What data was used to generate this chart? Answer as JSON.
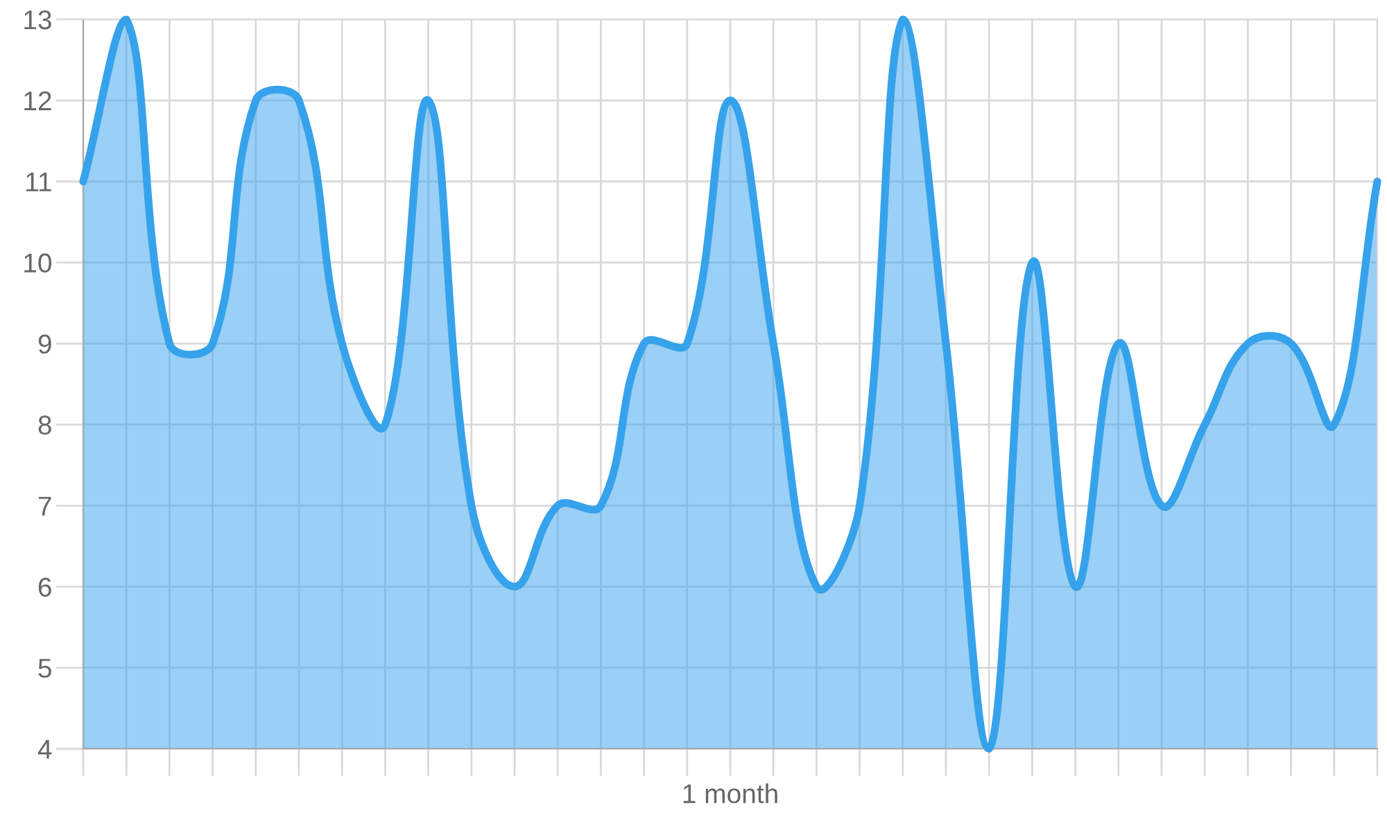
{
  "chart_data": {
    "type": "area",
    "xlabel": "1 month",
    "categories": [
      null,
      null,
      null,
      null,
      null,
      null,
      null,
      null,
      null,
      null,
      null,
      null,
      null,
      null,
      null,
      null,
      null,
      null,
      null,
      null,
      null,
      null,
      null,
      null,
      null,
      null,
      null,
      null,
      null,
      null,
      null
    ],
    "series": [
      {
        "color": "#36a2eb",
        "values": [
          11,
          13,
          9,
          9,
          12,
          12,
          9,
          8,
          12,
          7,
          6,
          7,
          7,
          9,
          9,
          12,
          9,
          6,
          7,
          13,
          9,
          4,
          10,
          6,
          9,
          7,
          8,
          9,
          9,
          8,
          11
        ]
      }
    ],
    "ylim": [
      4,
      13
    ],
    "yticks": [
      4,
      5,
      6,
      7,
      8,
      9,
      10,
      11,
      12,
      13
    ],
    "grid": true
  }
}
